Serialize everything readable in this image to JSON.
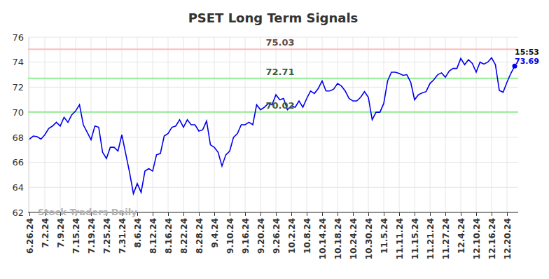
{
  "chart_data": {
    "type": "line",
    "title": "PSET Long Term Signals",
    "watermark": "Stock Traders Daily",
    "categories": [
      "6.26.24",
      null,
      null,
      null,
      "7.2.24",
      null,
      null,
      null,
      "7.9.24",
      null,
      null,
      null,
      "7.15.24",
      null,
      null,
      null,
      "7.19.24",
      null,
      null,
      null,
      "7.25.24",
      null,
      null,
      null,
      "7.31.24",
      null,
      null,
      null,
      "8.6.24",
      null,
      null,
      null,
      "8.12.24",
      null,
      null,
      null,
      "8.16.24",
      null,
      null,
      null,
      "8.22.24",
      null,
      null,
      null,
      "8.28.24",
      null,
      null,
      null,
      "9.4.24",
      null,
      null,
      null,
      "9.10.24",
      null,
      null,
      null,
      "9.16.24",
      null,
      null,
      null,
      "9.20.24",
      null,
      null,
      null,
      "9.26.24",
      null,
      null,
      null,
      "10.2.24",
      null,
      null,
      null,
      "10.8.24",
      null,
      null,
      null,
      "10.14.24",
      null,
      null,
      null,
      "10.18.24",
      null,
      null,
      null,
      "10.24.24",
      null,
      null,
      null,
      "10.30.24",
      null,
      null,
      null,
      "11.5.24",
      null,
      null,
      null,
      "11.11.24",
      null,
      null,
      null,
      "11.15.24",
      null,
      null,
      null,
      "11.21.24",
      null,
      null,
      null,
      "11.27.24",
      null,
      null,
      null,
      "12.4.24",
      null,
      null,
      null,
      "12.10.24",
      null,
      null,
      null,
      "12.16.24",
      null,
      null,
      null,
      "12.20.24",
      null,
      null
    ],
    "values": [
      67.85,
      68.1,
      68.05,
      67.85,
      68.2,
      68.7,
      68.9,
      69.2,
      68.9,
      69.6,
      69.2,
      69.8,
      70.1,
      70.6,
      69.0,
      68.4,
      67.8,
      68.9,
      68.8,
      66.8,
      66.3,
      67.2,
      67.2,
      66.9,
      68.2,
      66.7,
      65.2,
      63.5,
      64.3,
      63.6,
      65.3,
      65.5,
      65.3,
      66.6,
      66.7,
      68.1,
      68.3,
      68.8,
      68.9,
      69.4,
      68.8,
      69.4,
      69.0,
      69.0,
      68.5,
      68.6,
      69.3,
      67.4,
      67.2,
      66.8,
      65.7,
      66.6,
      66.9,
      68.0,
      68.3,
      69.0,
      69.0,
      69.2,
      69.0,
      70.6,
      70.2,
      70.4,
      70.7,
      70.6,
      71.4,
      71.0,
      71.1,
      70.2,
      70.5,
      70.4,
      70.9,
      70.4,
      71.1,
      71.7,
      71.5,
      71.9,
      72.5,
      71.7,
      71.7,
      71.85,
      72.3,
      72.1,
      71.7,
      71.1,
      70.9,
      70.9,
      71.2,
      71.65,
      71.2,
      69.4,
      70.0,
      70.0,
      70.7,
      72.5,
      73.2,
      73.2,
      73.1,
      72.95,
      73.0,
      72.4,
      71.0,
      71.4,
      71.55,
      71.65,
      72.3,
      72.6,
      73.0,
      73.15,
      72.8,
      73.3,
      73.5,
      73.5,
      74.3,
      73.8,
      74.2,
      73.9,
      73.2,
      74.0,
      73.85,
      74.0,
      74.35,
      73.8,
      71.75,
      71.6,
      72.4,
      73.1,
      73.69
    ],
    "color": "#0000ee",
    "ylim": [
      62,
      76
    ],
    "yticks": [
      62,
      64,
      66,
      68,
      70,
      72,
      74,
      76
    ],
    "grid": true,
    "annotations": [
      {
        "value": 75.03,
        "color": "#ffbdbd"
      },
      {
        "value": 72.71,
        "color": "#90ee90"
      },
      {
        "value": 70.02,
        "color": "#90ee90"
      }
    ],
    "end_annotation": {
      "time": "15:53",
      "value": 73.69
    }
  }
}
